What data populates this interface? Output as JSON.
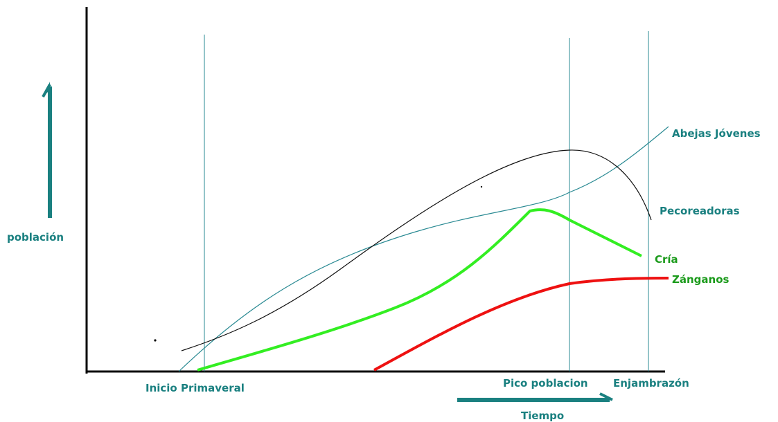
{
  "chart_data": {
    "type": "line",
    "ylabel": "población",
    "xlabel": "Tiempo",
    "milestones": [
      {
        "label": "Inicio Primaveral"
      },
      {
        "label": "Pico poblacion"
      },
      {
        "label": "Enjambrazón"
      }
    ],
    "series": [
      {
        "name": "Abejas Jóvenes",
        "color": "#2a8a93"
      },
      {
        "name": "Pecoreadoras",
        "color": "#111111"
      },
      {
        "name": "Cría",
        "color": "#33ee22"
      },
      {
        "name": "Zánganos",
        "color": "#ee1111"
      }
    ]
  },
  "colors": {
    "axis": "#000000",
    "accent": "#1a8080",
    "grid": "#2a8a93"
  }
}
